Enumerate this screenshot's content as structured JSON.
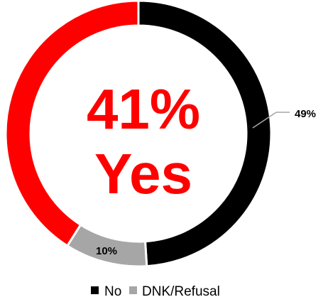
{
  "chart_data": {
    "type": "pie",
    "variant": "donut",
    "slices": [
      {
        "label": "No",
        "value": 49,
        "label_text": "49%",
        "color": "#000000"
      },
      {
        "label": "DNK/Refusal",
        "value": 10,
        "label_text": "10%",
        "color": "#a6a6a6"
      },
      {
        "label": "Yes",
        "value": 41,
        "color": "#ff0000"
      }
    ],
    "center": {
      "line1": "41%",
      "line2": "Yes",
      "color": "#ff0000"
    },
    "legend": {
      "placement": "bottom",
      "entries": [
        {
          "label": "No",
          "color": "#000000"
        },
        {
          "label": "DNK/Refusal",
          "color": "#a6a6a6"
        }
      ]
    }
  }
}
